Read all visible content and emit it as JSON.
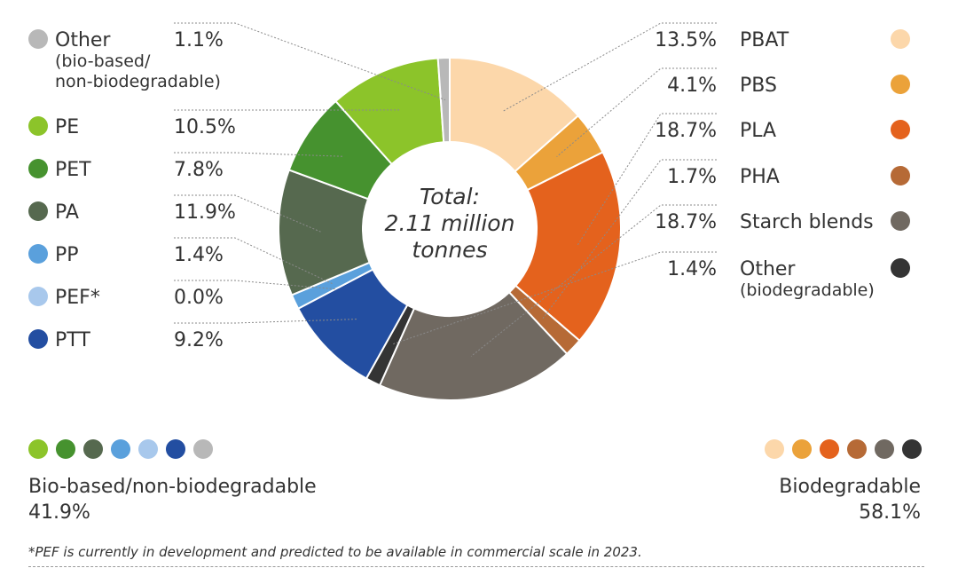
{
  "chart_data": {
    "type": "pie",
    "variant": "donut",
    "center_text": [
      "Total:",
      "2.11 million",
      "tonnes"
    ],
    "slices": [
      {
        "label": "PBAT",
        "value": 13.5,
        "value_label": "13.5%",
        "color": "#fcd7aa",
        "group": "biodegradable"
      },
      {
        "label": "PBS",
        "value": 4.1,
        "value_label": "4.1%",
        "color": "#eba23a",
        "group": "biodegradable"
      },
      {
        "label": "PLA",
        "value": 18.7,
        "value_label": "18.7%",
        "color": "#e4621d",
        "group": "biodegradable"
      },
      {
        "label": "PHA",
        "value": 1.7,
        "value_label": "1.7%",
        "color": "#b66a36",
        "group": "biodegradable"
      },
      {
        "label": "Starch blends",
        "value": 18.7,
        "value_label": "18.7%",
        "color": "#706961",
        "group": "biodegradable"
      },
      {
        "label": "Other (biodegradable)",
        "label_lines": [
          "Other",
          "(biodegradable)"
        ],
        "value": 1.4,
        "value_label": "1.4%",
        "color": "#343434",
        "group": "biodegradable"
      },
      {
        "label": "PTT",
        "value": 9.2,
        "value_label": "9.2%",
        "color": "#234ea1",
        "group": "bio-based"
      },
      {
        "label": "PEF*",
        "value": 0.0,
        "value_label": "0.0%",
        "color": "#a8c8ec",
        "group": "bio-based"
      },
      {
        "label": "PP",
        "value": 1.4,
        "value_label": "1.4%",
        "color": "#5aa0dc",
        "group": "bio-based"
      },
      {
        "label": "PA",
        "value": 11.9,
        "value_label": "11.9%",
        "color": "#56694f",
        "group": "bio-based"
      },
      {
        "label": "PET",
        "value": 7.8,
        "value_label": "7.8%",
        "color": "#46922f",
        "group": "bio-based"
      },
      {
        "label": "PE",
        "value": 10.5,
        "value_label": "10.5%",
        "color": "#8cc42a",
        "group": "bio-based"
      },
      {
        "label": "Other (bio-based/non-biodegradable)",
        "label_lines": [
          "Other",
          "(bio-based/",
          "non-biodegradable)"
        ],
        "value": 1.1,
        "value_label": "1.1%",
        "color": "#b8b8b8",
        "group": "bio-based"
      }
    ],
    "groups": [
      {
        "name": "Bio-based/non-biodegradable",
        "value_label": "41.9%"
      },
      {
        "name": "Biodegradable",
        "value_label": "58.1%"
      }
    ]
  },
  "footnote": "*PEF is currently in development and predicted to be available in commercial scale in 2023."
}
